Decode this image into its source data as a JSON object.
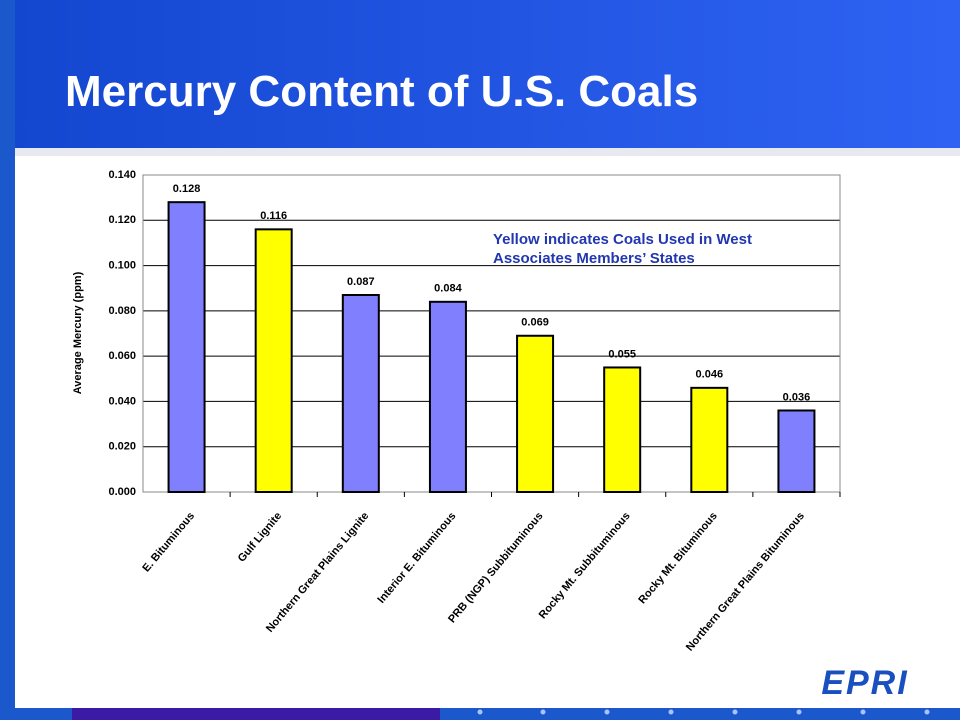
{
  "chart_data": {
    "type": "bar",
    "title": "Mercury Content of U.S. Coals",
    "y_label": "Average Mercury (ppm)",
    "annotation": [
      "Yellow indicates Coals Used in West",
      "Associates Members’ States"
    ],
    "categories": [
      "E. Bituminous",
      "Gulf Lignite",
      "Northern Great Plains Lignite",
      "Interior E. Bituminous",
      "PRB (NGP) Subbituminous",
      "Rocky Mt. Subbituminous",
      "Rocky Mt. Bituminous",
      "Northern Great Plains Bituminous"
    ],
    "values": [
      0.128,
      0.116,
      0.087,
      0.084,
      0.069,
      0.055,
      0.046,
      0.036
    ],
    "colors": [
      "#8080ff",
      "#ffff00",
      "#8080ff",
      "#8080ff",
      "#ffff00",
      "#ffff00",
      "#ffff00",
      "#8080ff"
    ],
    "ylim": [
      0,
      0.14
    ],
    "yticks": [
      {
        "value": 0,
        "label": "0.000"
      },
      {
        "value": 0.02,
        "label": "0.020"
      },
      {
        "value": 0.04,
        "label": "0.040"
      },
      {
        "value": 0.06,
        "label": "0.060"
      },
      {
        "value": 0.08,
        "label": "0.080"
      },
      {
        "value": 0.1,
        "label": "0.100"
      },
      {
        "value": 0.12,
        "label": "0.120"
      },
      {
        "value": 0.14,
        "label": "0.140"
      }
    ],
    "grid": true
  },
  "logo": "EPRI"
}
